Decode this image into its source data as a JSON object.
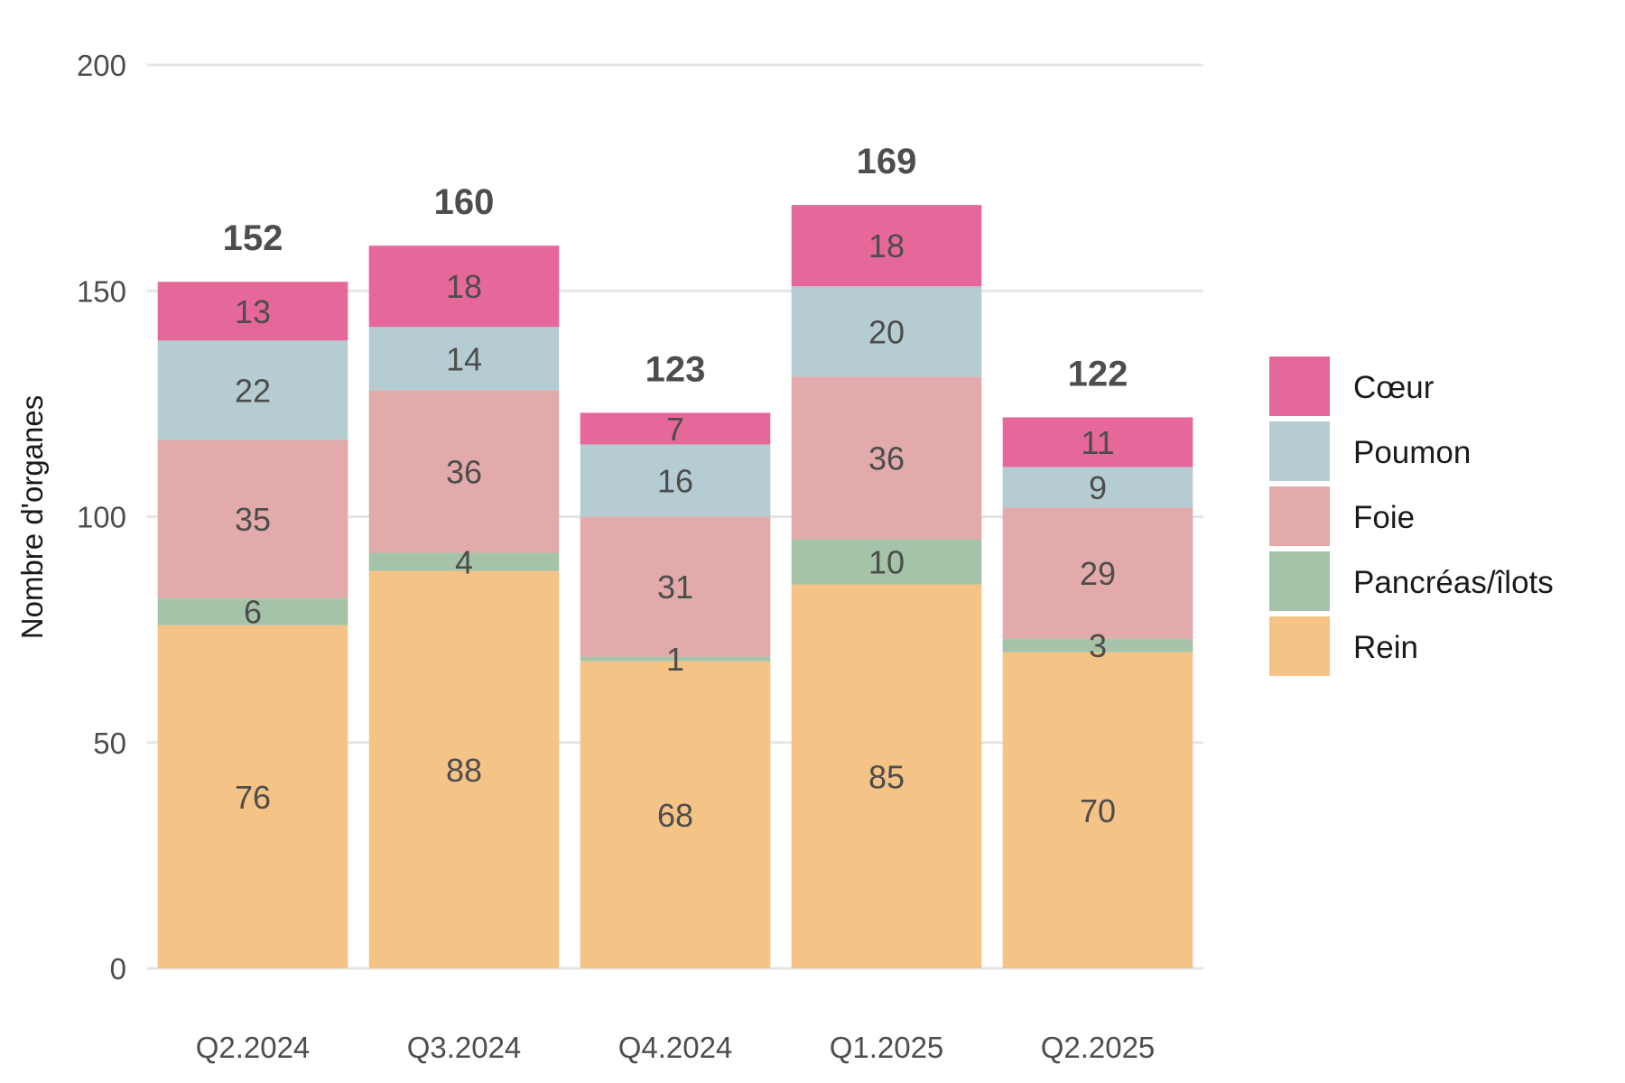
{
  "chart_data": {
    "type": "bar",
    "stacked": true,
    "ylabel": "Nombre d'organes",
    "xlabel": "",
    "ylim": [
      0,
      200
    ],
    "yticks": [
      0,
      50,
      100,
      150,
      200
    ],
    "grid": "horizontal",
    "legend_position": "right",
    "categories": [
      "Q2.2024",
      "Q3.2024",
      "Q4.2024",
      "Q1.2025",
      "Q2.2025"
    ],
    "series": [
      {
        "name": "Rein",
        "color": "#F5C386",
        "values": [
          76,
          88,
          68,
          85,
          70
        ]
      },
      {
        "name": "Pancréas/îlots",
        "color": "#A5C3A8",
        "values": [
          6,
          4,
          1,
          10,
          3
        ]
      },
      {
        "name": "Foie",
        "color": "#E2AAAA",
        "values": [
          35,
          36,
          31,
          36,
          29
        ]
      },
      {
        "name": "Poumon",
        "color": "#B5CDD2",
        "values": [
          22,
          14,
          16,
          20,
          9
        ]
      },
      {
        "name": "Cœur",
        "color": "#E6679A",
        "values": [
          13,
          18,
          7,
          18,
          11
        ]
      }
    ],
    "totals": [
      152,
      160,
      123,
      169,
      122
    ],
    "legend_order": [
      "Cœur",
      "Poumon",
      "Foie",
      "Pancréas/îlots",
      "Rein"
    ]
  }
}
